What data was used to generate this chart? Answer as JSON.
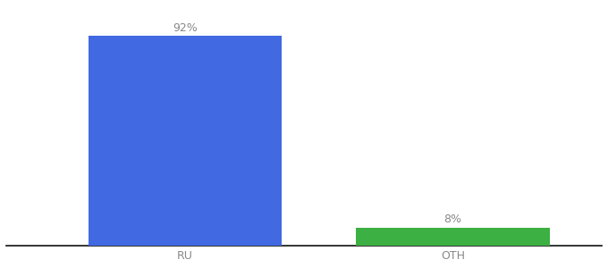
{
  "categories": [
    "RU",
    "OTH"
  ],
  "values": [
    92,
    8
  ],
  "bar_colors": [
    "#4169e1",
    "#3cb043"
  ],
  "bar_labels": [
    "92%",
    "8%"
  ],
  "background_color": "#ffffff",
  "label_color": "#888888",
  "tick_color": "#888888",
  "xlabel_fontsize": 9,
  "label_fontsize": 9,
  "ylim": [
    0,
    105
  ],
  "xlim": [
    -0.1,
    1.9
  ],
  "bar_positions": [
    0.5,
    1.4
  ],
  "bar_width": 0.65,
  "figsize": [
    6.8,
    3.0
  ],
  "dpi": 100
}
